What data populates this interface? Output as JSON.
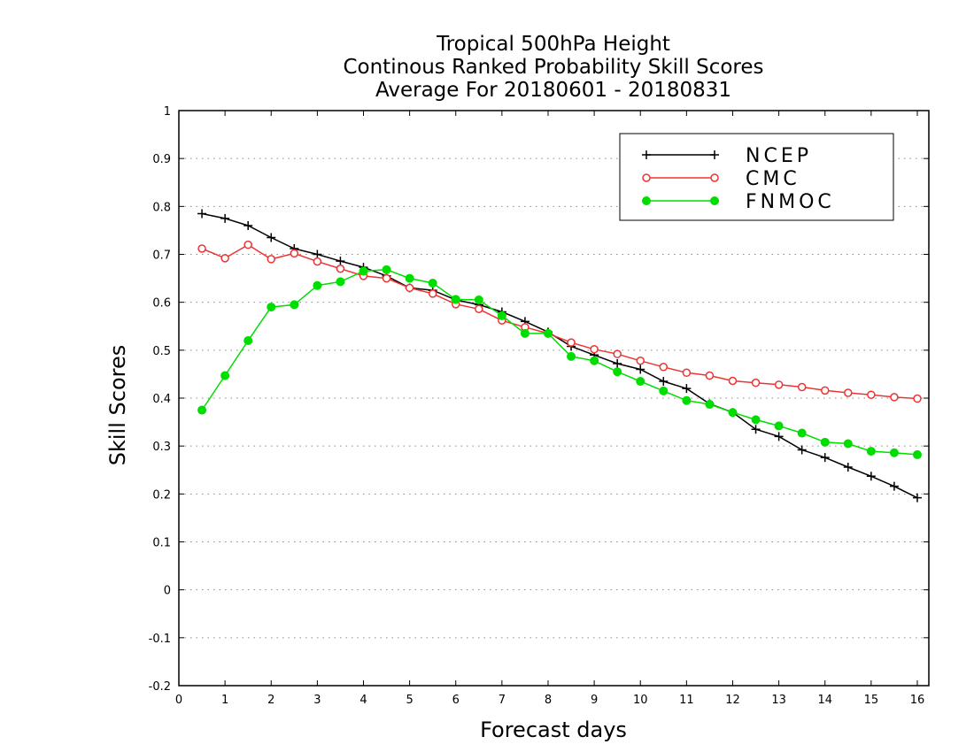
{
  "chart_data": {
    "type": "line",
    "title_lines": [
      "Tropical 500hPa Height",
      "Continous Ranked Probability Skill Scores",
      "Average For 20180601 - 20180831"
    ],
    "xlabel": "Forecast days",
    "ylabel": "Skill Scores",
    "xlim": [
      0,
      16.25
    ],
    "ylim": [
      -0.2,
      1.0
    ],
    "x_ticks": [
      0,
      1,
      2,
      3,
      4,
      5,
      6,
      7,
      8,
      9,
      10,
      11,
      12,
      13,
      14,
      15,
      16
    ],
    "y_ticks": [
      -0.2,
      -0.1,
      0,
      0.1,
      0.2,
      0.3,
      0.4,
      0.5,
      0.6,
      0.7,
      0.8,
      0.9,
      1
    ],
    "y_tick_labels": [
      "-0.2",
      "-0.1",
      "0",
      "0.1",
      "0.2",
      "0.3",
      "0.4",
      "0.5",
      "0.6",
      "0.7",
      "0.8",
      "0.9",
      "1"
    ],
    "grid": "horizontal dotted",
    "legend_position": "top-right",
    "x": [
      0.5,
      1,
      1.5,
      2,
      2.5,
      3,
      3.5,
      4,
      4.5,
      5,
      5.5,
      6,
      6.5,
      7,
      7.5,
      8,
      8.5,
      9,
      9.5,
      10,
      10.5,
      11,
      11.5,
      12,
      12.5,
      13,
      13.5,
      14,
      14.5,
      15,
      15.5,
      16
    ],
    "series": [
      {
        "name": "NCEP",
        "color": "#000000",
        "marker": "plus",
        "values": [
          0.785,
          0.775,
          0.76,
          0.735,
          0.712,
          0.7,
          0.686,
          0.673,
          0.655,
          0.63,
          0.625,
          0.605,
          0.595,
          0.58,
          0.56,
          0.538,
          0.508,
          0.49,
          0.472,
          0.46,
          0.435,
          0.42,
          0.388,
          0.37,
          0.335,
          0.32,
          0.292,
          0.276,
          0.256,
          0.237,
          0.216,
          0.192
        ]
      },
      {
        "name": "CMC",
        "color": "#ee3333",
        "marker": "open-circle",
        "values": [
          0.712,
          0.692,
          0.72,
          0.69,
          0.702,
          0.685,
          0.67,
          0.655,
          0.65,
          0.63,
          0.618,
          0.596,
          0.586,
          0.562,
          0.548,
          0.535,
          0.516,
          0.502,
          0.492,
          0.478,
          0.465,
          0.453,
          0.447,
          0.436,
          0.432,
          0.428,
          0.423,
          0.416,
          0.411,
          0.407,
          0.402,
          0.399
        ]
      },
      {
        "name": "FNMOC",
        "color": "#00dd00",
        "marker": "filled-circle",
        "values": [
          0.375,
          0.447,
          0.52,
          0.59,
          0.595,
          0.635,
          0.643,
          0.665,
          0.668,
          0.65,
          0.64,
          0.606,
          0.605,
          0.572,
          0.535,
          0.535,
          0.487,
          0.478,
          0.455,
          0.435,
          0.415,
          0.395,
          0.387,
          0.37,
          0.355,
          0.342,
          0.327,
          0.308,
          0.305,
          0.289,
          0.286,
          0.282
        ]
      }
    ]
  }
}
